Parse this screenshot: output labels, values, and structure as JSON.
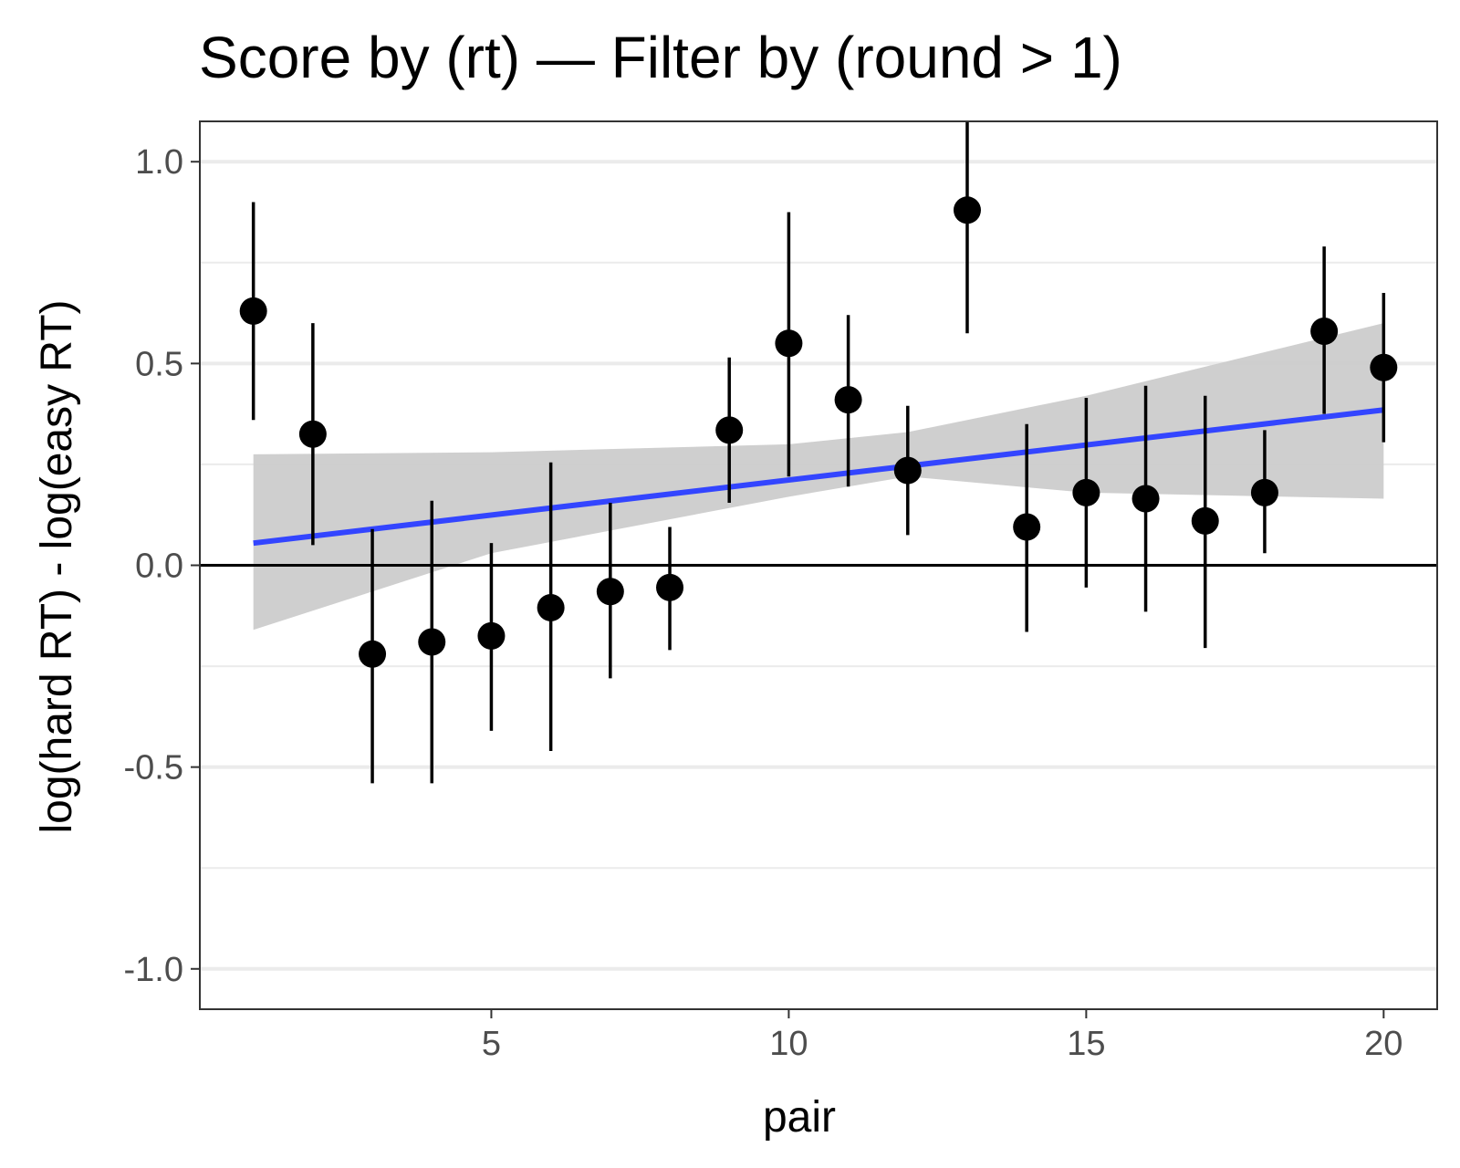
{
  "chart_data": {
    "type": "scatter",
    "title": "Score by (rt) — Filter by (round > 1)",
    "xlabel": "pair",
    "ylabel": "log(hard RT) - log(easy RT)",
    "xlim": [
      0.1,
      20.9
    ],
    "ylim": [
      -1.1,
      1.1
    ],
    "x_ticks": [
      5,
      10,
      15,
      20
    ],
    "x_tick_labels": [
      "5",
      "10",
      "15",
      "20"
    ],
    "y_ticks": [
      -1.0,
      -0.5,
      0.0,
      0.5,
      1.0
    ],
    "y_tick_labels": [
      "-1.0",
      "-0.5",
      "0.0",
      "0.5",
      "1.0"
    ],
    "grid": "horizontal",
    "reference_line_y": 0,
    "points": [
      {
        "x": 1,
        "y": 0.63,
        "low": 0.36,
        "high": 0.9
      },
      {
        "x": 2,
        "y": 0.325,
        "low": 0.05,
        "high": 0.6
      },
      {
        "x": 3,
        "y": -0.22,
        "low": -0.54,
        "high": 0.09
      },
      {
        "x": 4,
        "y": -0.19,
        "low": -0.54,
        "high": 0.16
      },
      {
        "x": 5,
        "y": -0.175,
        "low": -0.41,
        "high": 0.055
      },
      {
        "x": 6,
        "y": -0.105,
        "low": -0.46,
        "high": 0.255
      },
      {
        "x": 7,
        "y": -0.065,
        "low": -0.28,
        "high": 0.155
      },
      {
        "x": 8,
        "y": -0.055,
        "low": -0.21,
        "high": 0.095
      },
      {
        "x": 9,
        "y": 0.335,
        "low": 0.155,
        "high": 0.515
      },
      {
        "x": 10,
        "y": 0.55,
        "low": 0.22,
        "high": 0.875
      },
      {
        "x": 11,
        "y": 0.41,
        "low": 0.195,
        "high": 0.62
      },
      {
        "x": 12,
        "y": 0.235,
        "low": 0.075,
        "high": 0.395
      },
      {
        "x": 13,
        "y": 0.88,
        "low": 0.575,
        "high": 1.1
      },
      {
        "x": 14,
        "y": 0.095,
        "low": -0.165,
        "high": 0.35
      },
      {
        "x": 15,
        "y": 0.18,
        "low": -0.055,
        "high": 0.415
      },
      {
        "x": 16,
        "y": 0.165,
        "low": -0.115,
        "high": 0.445
      },
      {
        "x": 17,
        "y": 0.11,
        "low": -0.205,
        "high": 0.42
      },
      {
        "x": 18,
        "y": 0.18,
        "low": 0.03,
        "high": 0.335
      },
      {
        "x": 19,
        "y": 0.58,
        "low": 0.375,
        "high": 0.79
      },
      {
        "x": 20,
        "y": 0.49,
        "low": 0.305,
        "high": 0.675
      }
    ],
    "trend": {
      "x": [
        1,
        20
      ],
      "y": [
        0.055,
        0.385
      ],
      "band_x": [
        1,
        5,
        10,
        12,
        15,
        20
      ],
      "band_low": [
        -0.16,
        0.03,
        0.17,
        0.22,
        0.18,
        0.165
      ],
      "band_high": [
        0.275,
        0.28,
        0.3,
        0.33,
        0.42,
        0.6
      ]
    },
    "colors": {
      "point": "#000000",
      "trend": "#3345ff",
      "band": "#cccccc",
      "grid": "#ebebeb",
      "frame": "#333333"
    }
  }
}
